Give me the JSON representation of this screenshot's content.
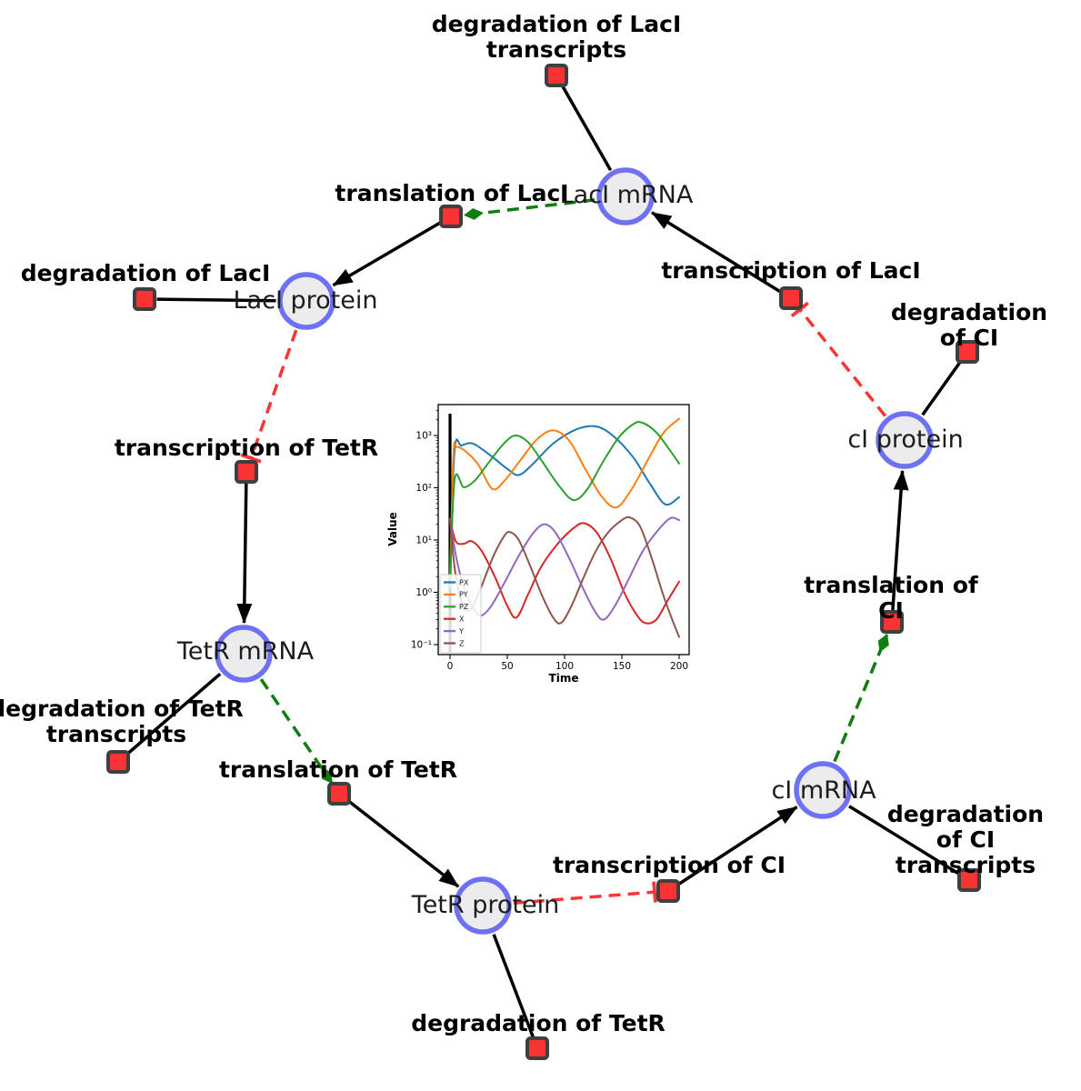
{
  "colors": {
    "node_fill": "#ececee",
    "node_border": "#6f71f3",
    "reaction_fill": "#f93333",
    "reaction_border": "#3f3f3f",
    "edge_black": "#000000",
    "catalysis_green": "#0f7d0f",
    "inhibition_red": "#fb3434"
  },
  "species": {
    "laci_mrna": {
      "label": "LacI mRNA"
    },
    "laci_protein": {
      "label": "LacI protein"
    },
    "ci_protein": {
      "label": "cI protein"
    },
    "ci_mrna": {
      "label": "cI mRNA"
    },
    "tetr_mrna": {
      "label": "TetR mRNA"
    },
    "tetr_protein": {
      "label": "TetR protein"
    }
  },
  "reactions": {
    "deg_laci_tx": {
      "label": "degradation of LacI\ntranscripts"
    },
    "transl_laci": {
      "label": "translation of LacI"
    },
    "txn_laci": {
      "label": "transcription of LacI"
    },
    "deg_ci": {
      "label": "degradation of CI"
    },
    "transl_ci": {
      "label": "translation of CI"
    },
    "deg_ci_tx": {
      "label": "degradation of CI\ntranscripts"
    },
    "txn_ci": {
      "label": "transcription of CI"
    },
    "deg_tetr": {
      "label": "degradation of TetR"
    },
    "transl_tetr": {
      "label": "translation of TetR"
    },
    "deg_tetr_tx": {
      "label": "degradation of TetR\ntranscripts"
    },
    "txn_tetr": {
      "label": "transcription of TetR"
    },
    "deg_laci": {
      "label": "degradation of LacI"
    }
  },
  "chart_data": {
    "type": "line",
    "title": "",
    "xlabel": "Time",
    "ylabel": "Value",
    "y_scale": "log",
    "x_ticks": [
      0,
      50,
      100,
      150,
      200
    ],
    "y_tick_labels": [
      "10⁻¹",
      "10⁰",
      "10¹",
      "10²",
      "10³"
    ],
    "xlim": [
      -10,
      209
    ],
    "ylim": [
      0.065,
      3900
    ],
    "grid": false,
    "legend_position": "lower left",
    "annotations": [
      {
        "kind": "vline",
        "x": 0,
        "color": "#000000"
      }
    ],
    "series": [
      {
        "name": "PX",
        "color": "#1f77b4",
        "points": [
          [
            0,
            2
          ],
          [
            4,
            520
          ],
          [
            10,
            640
          ],
          [
            20,
            700
          ],
          [
            35,
            420
          ],
          [
            50,
            230
          ],
          [
            60,
            175
          ],
          [
            72,
            280
          ],
          [
            90,
            700
          ],
          [
            110,
            1300
          ],
          [
            127,
            1500
          ],
          [
            142,
            1000
          ],
          [
            160,
            380
          ],
          [
            175,
            115
          ],
          [
            188,
            48
          ],
          [
            200,
            66
          ]
        ]
      },
      {
        "name": "PY",
        "color": "#ff7f0e",
        "points": [
          [
            0,
            1.5
          ],
          [
            3,
            430
          ],
          [
            6,
            600
          ],
          [
            15,
            470
          ],
          [
            25,
            270
          ],
          [
            37,
            95
          ],
          [
            48,
            140
          ],
          [
            62,
            350
          ],
          [
            76,
            850
          ],
          [
            90,
            1250
          ],
          [
            104,
            800
          ],
          [
            118,
            230
          ],
          [
            132,
            70
          ],
          [
            145,
            42
          ],
          [
            158,
            90
          ],
          [
            172,
            320
          ],
          [
            186,
            1100
          ],
          [
            200,
            2100
          ]
        ]
      },
      {
        "name": "PZ",
        "color": "#2ca02c",
        "points": [
          [
            0,
            1.2
          ],
          [
            4,
            140
          ],
          [
            12,
            102
          ],
          [
            22,
            140
          ],
          [
            35,
            330
          ],
          [
            47,
            700
          ],
          [
            57,
            1000
          ],
          [
            68,
            750
          ],
          [
            80,
            330
          ],
          [
            95,
            110
          ],
          [
            108,
            58
          ],
          [
            120,
            95
          ],
          [
            133,
            300
          ],
          [
            147,
            900
          ],
          [
            160,
            1650
          ],
          [
            168,
            1750
          ],
          [
            180,
            1150
          ],
          [
            192,
            520
          ],
          [
            200,
            290
          ]
        ]
      },
      {
        "name": "X",
        "color": "#d62728",
        "points": [
          [
            0,
            25
          ],
          [
            5,
            9.5
          ],
          [
            12,
            8.5
          ],
          [
            19,
            9.5
          ],
          [
            28,
            6
          ],
          [
            40,
            1.8
          ],
          [
            50,
            0.55
          ],
          [
            58,
            0.33
          ],
          [
            68,
            0.9
          ],
          [
            80,
            3.2
          ],
          [
            95,
            9
          ],
          [
            108,
            17
          ],
          [
            117,
            21
          ],
          [
            128,
            14
          ],
          [
            140,
            4.5
          ],
          [
            152,
            1
          ],
          [
            162,
            0.4
          ],
          [
            170,
            0.26
          ],
          [
            180,
            0.3
          ],
          [
            190,
            0.7
          ],
          [
            200,
            1.6
          ]
        ]
      },
      {
        "name": "Y",
        "color": "#9467bd",
        "points": [
          [
            0,
            25
          ],
          [
            6,
            4
          ],
          [
            13,
            1.1
          ],
          [
            20,
            0.5
          ],
          [
            27,
            0.36
          ],
          [
            36,
            0.55
          ],
          [
            48,
            1.6
          ],
          [
            60,
            5
          ],
          [
            72,
            13
          ],
          [
            82,
            20
          ],
          [
            92,
            14
          ],
          [
            104,
            4.5
          ],
          [
            116,
            1.2
          ],
          [
            126,
            0.45
          ],
          [
            134,
            0.3
          ],
          [
            144,
            0.55
          ],
          [
            156,
            1.8
          ],
          [
            168,
            6
          ],
          [
            180,
            14
          ],
          [
            192,
            26
          ],
          [
            200,
            24
          ]
        ]
      },
      {
        "name": "Z",
        "color": "#8c564b",
        "points": [
          [
            0,
            25
          ],
          [
            4,
            3
          ],
          [
            9,
            0.8
          ],
          [
            14,
            0.45
          ],
          [
            20,
            0.55
          ],
          [
            28,
            1.4
          ],
          [
            38,
            5
          ],
          [
            48,
            12.5
          ],
          [
            53,
            14
          ],
          [
            60,
            10
          ],
          [
            70,
            3.2
          ],
          [
            80,
            0.9
          ],
          [
            90,
            0.33
          ],
          [
            97,
            0.26
          ],
          [
            106,
            0.55
          ],
          [
            116,
            1.8
          ],
          [
            127,
            6
          ],
          [
            138,
            14
          ],
          [
            150,
            24
          ],
          [
            157,
            27
          ],
          [
            166,
            18
          ],
          [
            176,
            4.5
          ],
          [
            186,
            0.9
          ],
          [
            194,
            0.3
          ],
          [
            200,
            0.14
          ]
        ]
      }
    ]
  }
}
